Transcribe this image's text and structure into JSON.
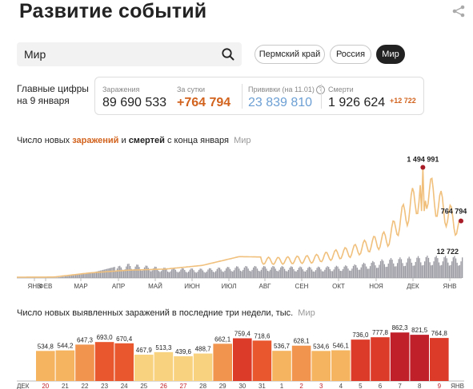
{
  "title": "Развитие событий",
  "search": {
    "value": "Мир"
  },
  "regions": [
    "Пермский край",
    "Россия",
    "Мир"
  ],
  "main_figures_label": "Главные цифры на 9 января",
  "stats": {
    "infections_label": "Заражения",
    "infections_value": "89 690 533",
    "daily_label": "За сутки",
    "daily_value": "+764 794",
    "vaccinations_label": "Прививки (на 11.01)",
    "vaccinations_value": "23 839 810",
    "deaths_label": "Смерти",
    "deaths_value": "1 926 624",
    "deaths_delta": "+12 722",
    "help_icon": "?"
  },
  "chart1_heading": {
    "part1": "Число новых ",
    "infections": "заражений",
    "part2": " и ",
    "deaths": "смертей",
    "part3": " с конца января",
    "region": "Мир"
  },
  "chart2_heading": {
    "text": "Число новых выявленных заражений в последние три недели, тыс.",
    "region": "Мир"
  },
  "colors": {
    "infections_line": "#f0c07c",
    "deaths_bars": "#9a9aa2",
    "accent_orange": "#d2631e",
    "vaccination_blue": "#6b9fd4",
    "peak_marker": "#a81c28"
  },
  "chart_data": [
    {
      "type": "line",
      "x_tick_labels": [
        "ЯНВ",
        "ФЕВ",
        "МАР",
        "АПР",
        "МАЙ",
        "ИЮН",
        "ИЮЛ",
        "АВГ",
        "СЕН",
        "ОКТ",
        "НОЯ",
        "ДЕК",
        "ЯНВ"
      ],
      "series": [
        {
          "name": "заражений",
          "approx_monthly_peak": [
            0,
            2000,
            60000,
            95000,
            110000,
            160000,
            280000,
            270000,
            300000,
            420000,
            640000,
            1494991,
            764794
          ]
        },
        {
          "name": "смертей",
          "approx_monthly_peak": [
            0,
            50,
            3000,
            8500,
            6000,
            5500,
            7000,
            7000,
            6500,
            7500,
            11500,
            13000,
            12722
          ]
        }
      ],
      "annotations": [
        "1 494 991",
        "764 794",
        "12 722"
      ]
    },
    {
      "type": "bar",
      "month_labels": [
        "ДЕК",
        "ЯНВ"
      ],
      "categories": [
        "20",
        "21",
        "22",
        "23",
        "24",
        "25",
        "26",
        "27",
        "28",
        "29",
        "30",
        "31",
        "1",
        "2",
        "3",
        "4",
        "5",
        "6",
        "7",
        "8",
        "9"
      ],
      "values": [
        534.8,
        544.2,
        647.3,
        693.0,
        670.4,
        467.9,
        513.3,
        439.6,
        488.7,
        662.1,
        759.4,
        718.6,
        536.7,
        628.1,
        534.6,
        546.1,
        736.0,
        777.8,
        862.3,
        821.5,
        764.8
      ],
      "value_labels": [
        "534,8",
        "544,2",
        "647,3",
        "693,0",
        "670,4",
        "467,9",
        "513,3",
        "439,6",
        "488,7",
        "662,1",
        "759,4",
        "718,6",
        "536,7",
        "628,1",
        "534,6",
        "546,1",
        "736,0",
        "777,8",
        "862,3",
        "821,5",
        "764,8"
      ],
      "weekend_days": [
        "20",
        "26",
        "27",
        "2",
        "3",
        "9"
      ]
    }
  ]
}
